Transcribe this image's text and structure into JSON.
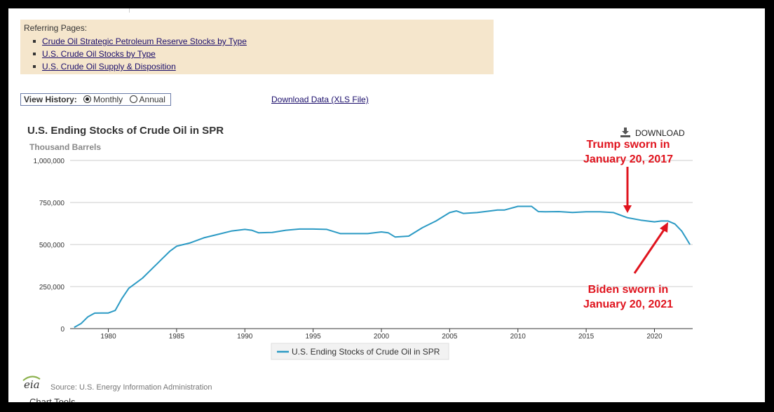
{
  "referring": {
    "title": "Referring Pages:",
    "links": [
      "Crude Oil Strategic Petroleum Reserve Stocks by Type",
      "U.S. Crude Oil Stocks by Type",
      "U.S. Crude Oil Supply & Disposition"
    ]
  },
  "view_history": {
    "label": "View History:",
    "options": [
      "Monthly",
      "Annual"
    ],
    "selected": "Monthly"
  },
  "download_data": "Download Data (XLS File)",
  "download_button": "DOWNLOAD",
  "source": "Source: U.S. Energy Information Administration",
  "logo_text": "eia",
  "chart_tools": "Chart Tools",
  "colors": {
    "line": "#2b9ac4",
    "annotation": "#e0141e",
    "grid": "#cccccc"
  },
  "chart_data": {
    "type": "line",
    "title": "U.S. Ending Stocks of Crude Oil in SPR",
    "ylabel": "Thousand Barrels",
    "xlabel": "",
    "xlim": [
      1977.2,
      2022.8
    ],
    "ylim": [
      0,
      1000000
    ],
    "yticks": [
      0,
      250000,
      500000,
      750000,
      1000000
    ],
    "ytick_labels": [
      "0",
      "250,000",
      "500,000",
      "750,000",
      "1,000,000"
    ],
    "xticks": [
      1980,
      1985,
      1990,
      1995,
      2000,
      2005,
      2010,
      2015,
      2020
    ],
    "xtick_labels": [
      "1980",
      "1985",
      "1990",
      "1995",
      "2000",
      "2005",
      "2010",
      "2015",
      "2020"
    ],
    "legend": "bottom",
    "series": [
      {
        "name": "U.S. Ending Stocks of Crude Oil in SPR",
        "x": [
          1977.5,
          1978.0,
          1978.5,
          1979.0,
          1979.5,
          1980.0,
          1980.5,
          1981.0,
          1981.5,
          1982.0,
          1982.5,
          1983.0,
          1983.5,
          1984.0,
          1984.5,
          1985.0,
          1985.5,
          1986.0,
          1987.0,
          1988.0,
          1989.0,
          1990.0,
          1990.5,
          1991.0,
          1992.0,
          1993.0,
          1994.0,
          1995.0,
          1996.0,
          1997.0,
          1998.0,
          1999.0,
          2000.0,
          2000.5,
          2001.0,
          2002.0,
          2003.0,
          2004.0,
          2005.0,
          2005.5,
          2006.0,
          2007.0,
          2008.0,
          2008.5,
          2009.0,
          2010.0,
          2011.0,
          2011.5,
          2012.0,
          2013.0,
          2014.0,
          2015.0,
          2016.0,
          2017.0,
          2017.5,
          2018.0,
          2019.0,
          2020.0,
          2020.5,
          2021.0,
          2021.5,
          2022.0,
          2022.3,
          2022.6
        ],
        "values": [
          7000,
          30000,
          70000,
          92000,
          93000,
          93000,
          108000,
          180000,
          240000,
          270000,
          300000,
          340000,
          380000,
          420000,
          460000,
          490000,
          500000,
          510000,
          540000,
          560000,
          580000,
          590000,
          585000,
          570000,
          572000,
          585000,
          592000,
          592000,
          590000,
          565000,
          565000,
          565000,
          575000,
          570000,
          545000,
          550000,
          600000,
          640000,
          690000,
          700000,
          685000,
          690000,
          700000,
          705000,
          705000,
          727000,
          727000,
          696000,
          695000,
          696000,
          691000,
          695000,
          695000,
          690000,
          675000,
          660000,
          645000,
          635000,
          640000,
          640000,
          622000,
          580000,
          540000,
          500000
        ]
      }
    ],
    "annotations": [
      {
        "text_lines": [
          "Trump sworn in",
          "January 20, 2017"
        ],
        "date": "January 20, 2017"
      },
      {
        "text_lines": [
          "Biden sworn in",
          "January 20, 2021"
        ],
        "date": "January 20, 2021"
      }
    ]
  }
}
